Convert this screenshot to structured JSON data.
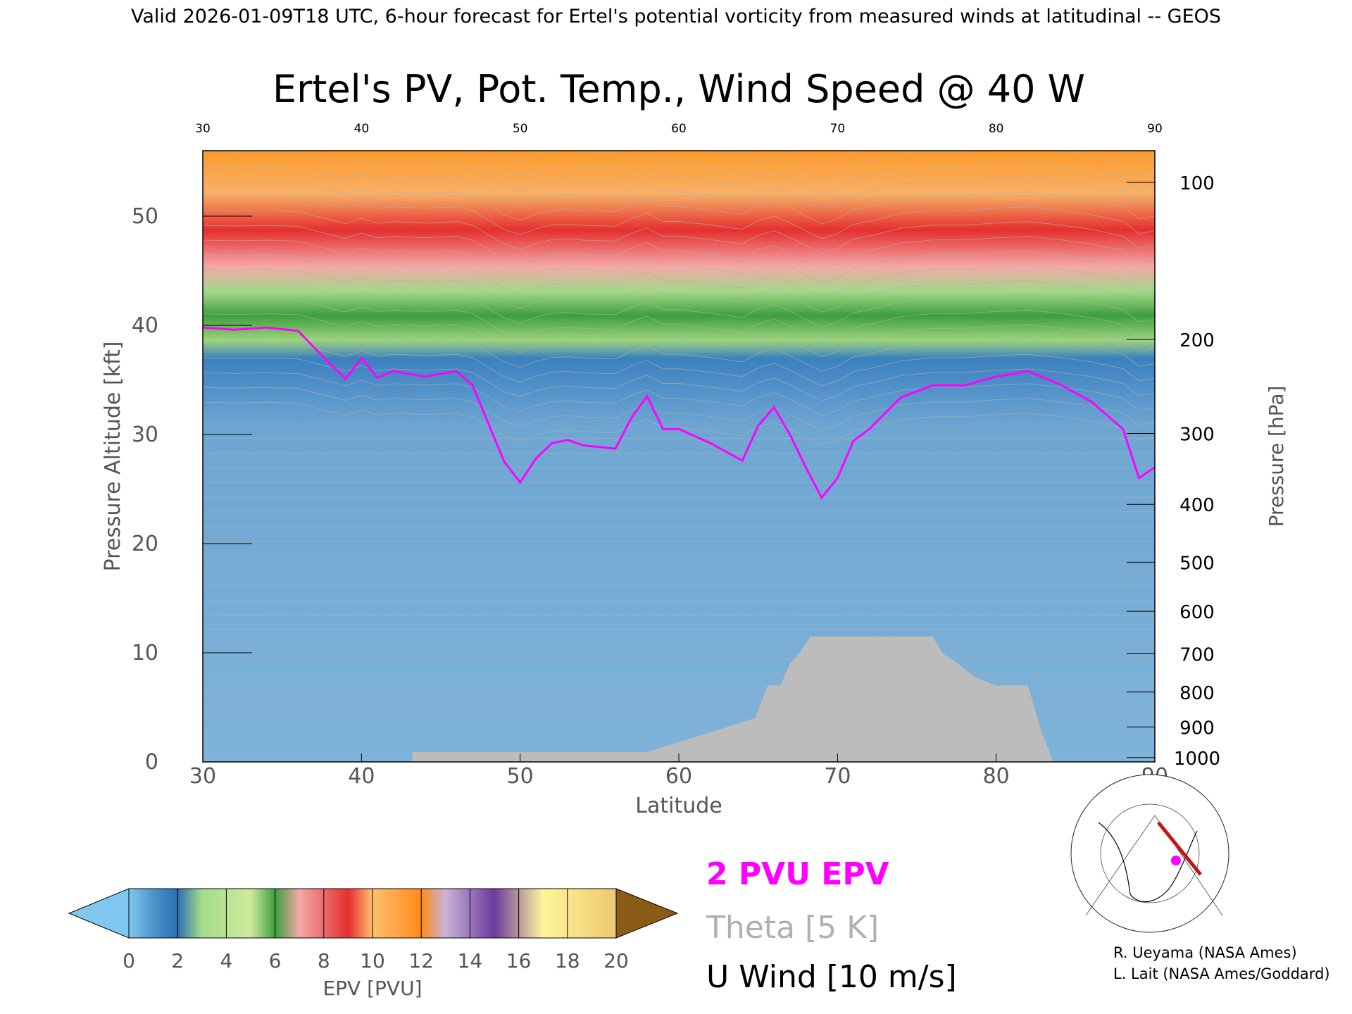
{
  "header": "Valid 2026-01-09T18 UTC, 6-hour forecast for Ertel's potential vorticity from measured winds at latitudinal -- GEOS",
  "chart_data": {
    "type": "heatmap",
    "title": "Ertel's PV, Pot. Temp., Wind Speed @ 40 W",
    "xlabel": "Latitude",
    "ylabel": "Pressure Altitude [kft]",
    "y2label": "Pressure [hPa]",
    "xlim": [
      30,
      90
    ],
    "ylim": [
      0,
      56
    ],
    "x_ticks": [
      "30",
      "40",
      "50",
      "60",
      "70",
      "80",
      "90"
    ],
    "y_ticks": [
      "0",
      "10",
      "20",
      "30",
      "40",
      "50"
    ],
    "top_ticks": [
      "30",
      "40",
      "50",
      "60",
      "70",
      "80",
      "90"
    ],
    "pressure_ticks": [
      {
        "label": "100",
        "kft": 53.1
      },
      {
        "label": "200",
        "kft": 38.7
      },
      {
        "label": "300",
        "kft": 30.1
      },
      {
        "label": "400",
        "kft": 23.6
      },
      {
        "label": "500",
        "kft": 18.3
      },
      {
        "label": "600",
        "kft": 13.8
      },
      {
        "label": "700",
        "kft": 9.9
      },
      {
        "label": "800",
        "kft": 6.4
      },
      {
        "label": "900",
        "kft": 3.2
      },
      {
        "label": "1000",
        "kft": 0.4
      }
    ],
    "epv_2pvu_altitude": {
      "lat": [
        30,
        32,
        34,
        36,
        38,
        39,
        40,
        41,
        42,
        44,
        46,
        47,
        48,
        49,
        50,
        51,
        52,
        53,
        54,
        56,
        57,
        58,
        59,
        60,
        62,
        64,
        65,
        66,
        67,
        68,
        69,
        70,
        71,
        72,
        74,
        76,
        78,
        80,
        82,
        84,
        86,
        88,
        89,
        90
      ],
      "kft": [
        39.8,
        39.6,
        39.8,
        39.5,
        36.5,
        35.1,
        37.0,
        35.2,
        35.8,
        35.3,
        35.8,
        34.5,
        31.0,
        27.5,
        25.6,
        27.8,
        29.2,
        29.5,
        29.0,
        28.7,
        31.5,
        33.5,
        30.5,
        30.5,
        29.2,
        27.6,
        30.8,
        32.5,
        30.0,
        27.0,
        24.2,
        26.0,
        29.4,
        30.5,
        33.4,
        34.5,
        34.5,
        35.3,
        35.8,
        34.6,
        33.0,
        30.5,
        26.0,
        27.0
      ]
    },
    "terrain_top_kft": {
      "lat": [
        43.2,
        48.0,
        58.0,
        64.8,
        65.6,
        66.4,
        67.0,
        67.6,
        68.3,
        69.5,
        76.0,
        76.6,
        77.6,
        78.6,
        80.0,
        82.0,
        82.8,
        83.6
      ],
      "kft": [
        0.9,
        0.9,
        0.9,
        4.0,
        7.0,
        7.0,
        9.0,
        10.0,
        11.5,
        11.5,
        11.5,
        10.0,
        9.0,
        7.8,
        7.0,
        7.0,
        3.0,
        0.0
      ]
    },
    "colorbar": {
      "label": "EPV [PVU]",
      "ticks": [
        "0",
        "2",
        "4",
        "6",
        "8",
        "10",
        "12",
        "14",
        "16",
        "18",
        "20"
      ],
      "colors": [
        "#80c8f0",
        "#1d63a8",
        "#a8cfe8",
        "#2f7cc1",
        "#9ed37c",
        "#c8e89c",
        "#5cb85a",
        "#2a8a2a",
        "#f4a8a8",
        "#f07a80",
        "#e52f2f",
        "#d91e1e",
        "#ffc070",
        "#ffa040",
        "#ff8a1a",
        "#f07a10",
        "#c9b3d9",
        "#a983c7",
        "#6c3b9e",
        "#8e5fb6",
        "#fff59a",
        "#eec870",
        "#8b5a14"
      ]
    },
    "colors": {
      "epv_2pvu": "#ff00ff",
      "theta": "#b0b0b0",
      "u_wind": "#000000",
      "terrain": "#bcbcbc"
    },
    "legend": {
      "epv": "2 PVU EPV",
      "theta": "Theta [5 K]",
      "wind": "U Wind [10 m/s]"
    },
    "credits": [
      "R. Ueyama (NASA Ames)",
      "L. Lait (NASA Ames/Goddard)"
    ]
  }
}
